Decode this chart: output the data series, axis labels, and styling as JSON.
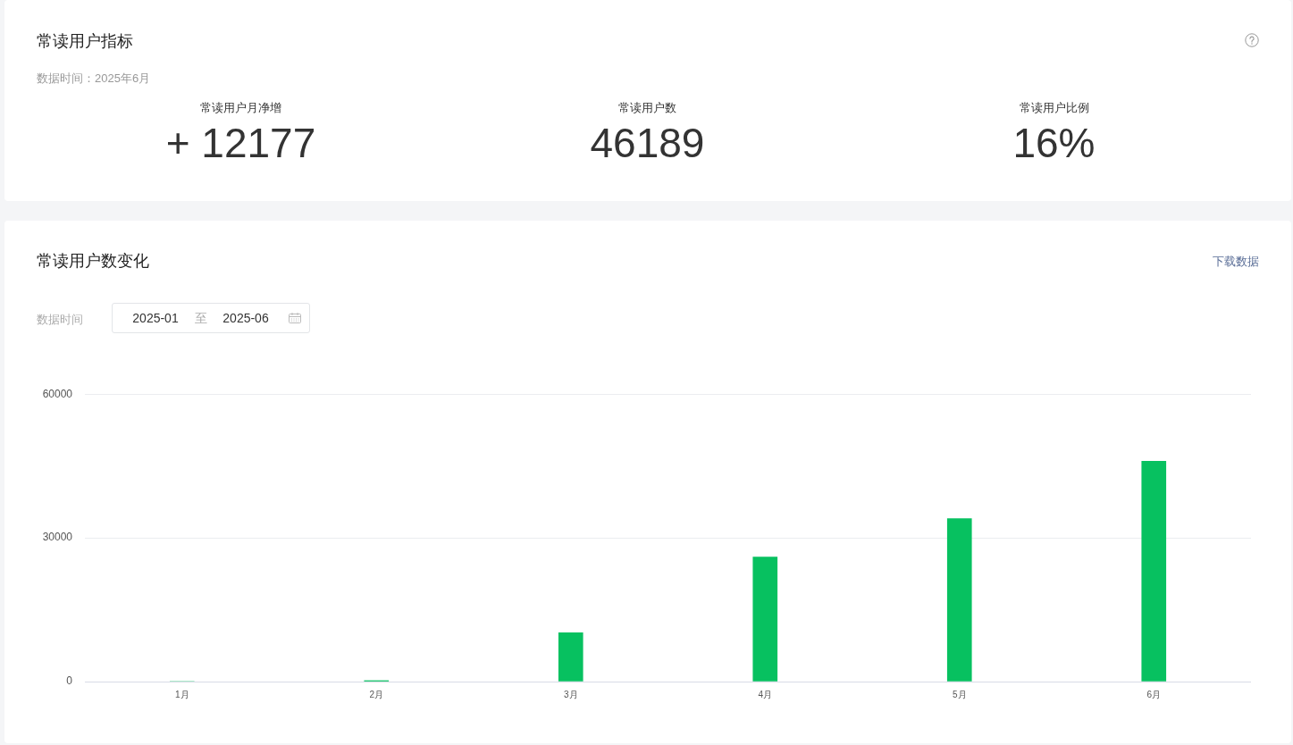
{
  "chart_data": [
    {
      "type": "other",
      "title": "常读用户指标",
      "subtitle": "数据时间：2025年6月",
      "annotations": [
        "常读用户月净增",
        "+ 12177",
        "常读用户数",
        "46189",
        "常读用户比例",
        "16%"
      ]
    },
    {
      "type": "bar",
      "title": "常读用户数变化",
      "annotations": [
        "下载数据",
        "数据时间",
        "2025-01",
        "至",
        "2025-06"
      ],
      "categories": [
        "1月",
        "2月",
        "3月",
        "4月",
        "5月",
        "6月"
      ],
      "values": [
        0,
        200,
        10200,
        26000,
        34000,
        46000
      ],
      "color": "#07c160",
      "ylim": [
        0,
        60000
      ],
      "yticks": [
        0,
        30000,
        60000
      ],
      "grid": "y"
    }
  ]
}
